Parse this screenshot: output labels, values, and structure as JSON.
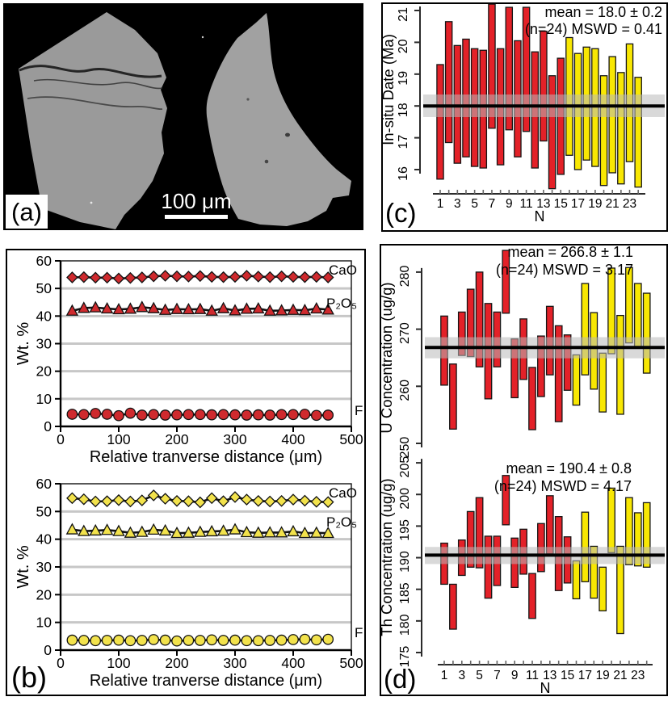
{
  "colors": {
    "red": "#e32128",
    "yellow": "#f8e703",
    "marker_red": "#cf2a2e",
    "marker_yellow": "#f2e24c",
    "band": "rgba(185,185,185,0.55)",
    "grid": "#c7c7c7",
    "grain_gray": "#9a9a9a",
    "sem_background": "#000000"
  },
  "panel_a": {
    "label": "(a)",
    "scale_bar_label": "100 μm"
  },
  "panel_b": {
    "label": "(b)"
  },
  "panel_c": {
    "label": "(c)"
  },
  "panel_d": {
    "label": "(d)"
  },
  "chart_data": [
    {
      "id": "b_top",
      "type": "line",
      "panel": "b",
      "position": "top",
      "ylabel": "Wt. %",
      "xlabel": "Relative tranverse distance (μm)",
      "xlim": [
        0,
        500
      ],
      "ylim": [
        0,
        60
      ],
      "xticks": [
        0,
        100,
        200,
        300,
        400,
        500
      ],
      "yticks": [
        0,
        10,
        20,
        30,
        40,
        50,
        60
      ],
      "grid_values": [
        10,
        20,
        30,
        40,
        50
      ],
      "color_key": "marker_red",
      "x": [
        20,
        40,
        60,
        80,
        100,
        120,
        140,
        160,
        180,
        200,
        220,
        240,
        260,
        280,
        300,
        320,
        340,
        360,
        380,
        400,
        420,
        440,
        460
      ],
      "series": [
        {
          "name": "CaO",
          "marker": "diamond",
          "values": [
            54.0,
            54.1,
            53.9,
            53.9,
            53.6,
            53.8,
            54.0,
            54.4,
            54.6,
            54.4,
            54.3,
            54.5,
            54.2,
            54.1,
            54.2,
            54.6,
            54.3,
            54.1,
            54.4,
            54.2,
            54.1,
            54.2,
            54.0
          ]
        },
        {
          "name": "P₂O₅",
          "marker": "triangle",
          "values": [
            41.9,
            42.9,
            43.1,
            42.7,
            42.4,
            42.6,
            43.2,
            42.8,
            42.2,
            42.5,
            42.4,
            42.5,
            41.9,
            42.8,
            42.0,
            42.6,
            42.7,
            41.9,
            42.0,
            42.2,
            42.1,
            42.7,
            42.3
          ]
        },
        {
          "name": "F",
          "marker": "circle",
          "values": [
            4.4,
            4.3,
            4.7,
            4.4,
            3.9,
            4.8,
            4.1,
            4.3,
            4.1,
            4.2,
            4.3,
            4.3,
            4.2,
            4.3,
            4.2,
            4.1,
            4.2,
            4.1,
            4.3,
            4.3,
            4.4,
            4.0,
            4.1
          ]
        }
      ]
    },
    {
      "id": "b_bottom",
      "type": "line",
      "panel": "b",
      "position": "bottom",
      "ylabel": "Wt. %",
      "xlabel": "Relative tranverse distance (μm)",
      "xlim": [
        0,
        500
      ],
      "ylim": [
        0,
        60
      ],
      "xticks": [
        0,
        100,
        200,
        300,
        400,
        500
      ],
      "yticks": [
        0,
        10,
        20,
        30,
        40,
        50,
        60
      ],
      "grid_values": [
        10,
        20,
        30,
        40,
        50
      ],
      "color_key": "marker_yellow",
      "x": [
        20,
        40,
        60,
        80,
        100,
        120,
        140,
        160,
        180,
        200,
        220,
        240,
        260,
        280,
        300,
        320,
        340,
        360,
        380,
        400,
        420,
        440,
        460
      ],
      "series": [
        {
          "name": "CaO",
          "marker": "diamond",
          "values": [
            54.8,
            54.4,
            53.6,
            53.7,
            54.1,
            53.6,
            54.0,
            55.8,
            54.6,
            53.8,
            53.7,
            53.3,
            54.8,
            53.7,
            55.2,
            54.3,
            53.8,
            53.6,
            53.8,
            54.3,
            53.9,
            53.5,
            53.4
          ]
        },
        {
          "name": "P₂O₅",
          "marker": "triangle",
          "values": [
            43.5,
            42.9,
            43.1,
            43.3,
            42.9,
            42.3,
            42.6,
            43.4,
            43.1,
            42.2,
            42.3,
            42.6,
            42.8,
            43.0,
            43.5,
            42.5,
            42.3,
            42.4,
            42.4,
            42.8,
            42.2,
            42.3,
            42.2
          ]
        },
        {
          "name": "F",
          "marker": "circle",
          "values": [
            3.6,
            3.5,
            3.4,
            3.5,
            3.6,
            3.4,
            3.5,
            3.8,
            3.6,
            3.3,
            3.5,
            3.5,
            3.7,
            3.5,
            3.6,
            3.4,
            3.4,
            3.5,
            3.6,
            3.8,
            3.9,
            3.7,
            3.9
          ]
        }
      ]
    },
    {
      "id": "c",
      "type": "bar-range",
      "panel": "c",
      "ylabel": "In-situ Date (Ma)",
      "xlabel": "N",
      "yticks": [
        16,
        17,
        18,
        19,
        20,
        21
      ],
      "xtick_labels": [
        1,
        3,
        5,
        7,
        9,
        11,
        13,
        15,
        17,
        19,
        21,
        23
      ],
      "annotation": [
        "mean = 18.0 ± 0.2",
        "(n=24) MSWD = 0.41"
      ],
      "mean": 18.0,
      "band": [
        17.65,
        18.36
      ],
      "red_count": 15,
      "bars": [
        [
          15.7,
          19.3
        ],
        [
          16.85,
          20.65
        ],
        [
          16.2,
          19.9
        ],
        [
          16.4,
          20.1
        ],
        [
          16.1,
          19.8
        ],
        [
          16.05,
          19.75
        ],
        [
          17.3,
          21.2
        ],
        [
          16.15,
          19.8
        ],
        [
          17.25,
          21.1
        ],
        [
          16.4,
          20.05
        ],
        [
          17.2,
          21.1
        ],
        [
          16.05,
          19.7
        ],
        [
          16.9,
          20.35
        ],
        [
          15.4,
          18.95
        ],
        [
          15.85,
          19.5
        ],
        [
          16.45,
          20.15
        ],
        [
          16.0,
          19.65
        ],
        [
          16.3,
          19.85
        ],
        [
          16.1,
          19.8
        ],
        [
          15.5,
          18.95
        ],
        [
          15.9,
          19.55
        ],
        [
          15.55,
          19.05
        ],
        [
          16.25,
          19.95
        ],
        [
          15.45,
          18.9
        ]
      ]
    },
    {
      "id": "d_u",
      "type": "bar-range",
      "panel": "d",
      "position": "top",
      "ylabel": "U Concentration (ug/g)",
      "yticks": [
        250,
        260,
        270,
        280
      ],
      "annotation": [
        "mean = 266.8 ± 1.1",
        "(n=24) MSWD = 3.17"
      ],
      "mean": 266.8,
      "band": [
        264.9,
        268.6
      ],
      "red_count": 15,
      "bars": [
        [
          260.2,
          272.3
        ],
        [
          252.5,
          263.9
        ],
        [
          265.4,
          273.0
        ],
        [
          265.2,
          277.0
        ],
        [
          263.4,
          280.0
        ],
        [
          257.8,
          274.5
        ],
        [
          263.4,
          273.0
        ],
        [
          272.8,
          283.8
        ],
        [
          258.0,
          268.3
        ],
        [
          261.2,
          271.8
        ],
        [
          252.4,
          263.3
        ],
        [
          258.2,
          268.8
        ],
        [
          262.0,
          274.0
        ],
        [
          253.8,
          270.6
        ],
        [
          259.3,
          269.0
        ],
        [
          256.7,
          265.5
        ],
        [
          262.0,
          278.0
        ],
        [
          259.5,
          272.9
        ],
        [
          255.5,
          265.8
        ],
        [
          265.7,
          280.7
        ],
        [
          255.1,
          272.4
        ],
        [
          267.6,
          280.8
        ],
        [
          266.8,
          278.0
        ],
        [
          262.3,
          276.3
        ]
      ]
    },
    {
      "id": "d_th",
      "type": "bar-range",
      "panel": "d",
      "position": "bottom",
      "ylabel": "Th Concentration (ug/g)",
      "xlabel": "N",
      "yticks": [
        175,
        180,
        185,
        190,
        195,
        200,
        205
      ],
      "xtick_labels": [
        1,
        3,
        5,
        7,
        9,
        11,
        13,
        15,
        17,
        19,
        21,
        23
      ],
      "annotation": [
        "mean = 190.4 ± 0.8",
        "(n=24) MSWD = 4.17"
      ],
      "mean": 190.4,
      "band": [
        189.0,
        191.7
      ],
      "red_count": 15,
      "bars": [
        [
          185.8,
          192.3
        ],
        [
          178.7,
          185.8
        ],
        [
          187.2,
          192.8
        ],
        [
          188.5,
          197.3
        ],
        [
          188.4,
          199.5
        ],
        [
          183.6,
          193.4
        ],
        [
          185.6,
          193.4
        ],
        [
          195.2,
          203.0
        ],
        [
          185.3,
          193.1
        ],
        [
          187.4,
          194.5
        ],
        [
          180.4,
          187.5
        ],
        [
          187.8,
          195.4
        ],
        [
          190.6,
          199.8
        ],
        [
          184.8,
          196.5
        ],
        [
          186.0,
          193.3
        ],
        [
          183.5,
          189.5
        ],
        [
          186.2,
          197.2
        ],
        [
          183.6,
          191.8
        ],
        [
          181.6,
          188.5
        ],
        [
          190.8,
          201.0
        ],
        [
          178.0,
          191.8
        ],
        [
          188.9,
          199.5
        ],
        [
          188.7,
          197.1
        ],
        [
          188.5,
          198.7
        ]
      ]
    }
  ]
}
